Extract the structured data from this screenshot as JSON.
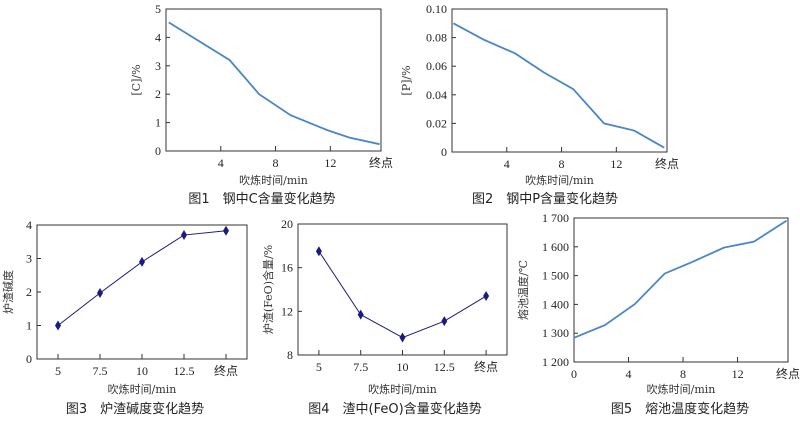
{
  "chart_data": [
    {
      "type": "line",
      "caption": "图1　钢中C含量变化趋势",
      "xlabel": "吹炼时间/min",
      "ylabel": "[C]/%",
      "xlim": [
        0,
        15.7
      ],
      "ylim": [
        0,
        5
      ],
      "xticks": [
        {
          "v": 4,
          "label": "4"
        },
        {
          "v": 8,
          "label": "8"
        },
        {
          "v": 12,
          "label": "12"
        },
        {
          "v": 15.7,
          "label": "终点"
        }
      ],
      "yticks": [
        {
          "v": 0,
          "label": "0"
        },
        {
          "v": 1,
          "label": "1"
        },
        {
          "v": 2,
          "label": "2"
        },
        {
          "v": 3,
          "label": "3"
        },
        {
          "v": 4,
          "label": "4"
        },
        {
          "v": 5,
          "label": "5"
        }
      ],
      "x": [
        0.2,
        4.65,
        6.8,
        9.1,
        11.8,
        13.4,
        15.6
      ],
      "y": [
        4.53,
        3.2,
        2.0,
        1.26,
        0.73,
        0.47,
        0.24
      ],
      "color": "#4a86c8",
      "markers": false,
      "grid": false
    },
    {
      "type": "line",
      "caption": "图2　钢中P含量变化趋势",
      "xlabel": "吹炼时间/min",
      "ylabel": "[P]/%",
      "xlim": [
        0,
        15.7
      ],
      "ylim": [
        0,
        0.1
      ],
      "xticks": [
        {
          "v": 4,
          "label": "4"
        },
        {
          "v": 8,
          "label": "8"
        },
        {
          "v": 12,
          "label": "12"
        },
        {
          "v": 15.7,
          "label": "终点"
        }
      ],
      "yticks": [
        {
          "v": 0,
          "label": "0"
        },
        {
          "v": 0.02,
          "label": "0.02"
        },
        {
          "v": 0.04,
          "label": "0.04"
        },
        {
          "v": 0.06,
          "label": "0.06"
        },
        {
          "v": 0.08,
          "label": "0.08"
        },
        {
          "v": 0.1,
          "label": "0.10"
        }
      ],
      "x": [
        0.1,
        2.3,
        4.6,
        6.7,
        8.85,
        11.1,
        13.3,
        15.5
      ],
      "y": [
        0.09,
        0.0786,
        0.069,
        0.0557,
        0.044,
        0.02,
        0.015,
        0.003
      ],
      "color": "#4a86c8",
      "markers": false,
      "grid": false
    },
    {
      "type": "line",
      "caption": "图3　炉渣碱度变化趋势",
      "xlabel": "吹炼时间/min",
      "ylabel": "炉渣碱度",
      "categories": [
        "5",
        "7.5",
        "10",
        "12.5",
        "终点"
      ],
      "ylim": [
        0,
        4
      ],
      "yticks": [
        {
          "v": 0,
          "label": "0"
        },
        {
          "v": 1,
          "label": "1"
        },
        {
          "v": 2,
          "label": "2"
        },
        {
          "v": 3,
          "label": "3"
        },
        {
          "v": 4,
          "label": "4"
        }
      ],
      "y": [
        1.0,
        1.97,
        2.9,
        3.7,
        3.83
      ],
      "color": "#1a1a80",
      "markers": true,
      "grid": false
    },
    {
      "type": "line",
      "caption": "图4　渣中(FeO)含量变化趋势",
      "xlabel": "吹炼时间/min",
      "ylabel": "炉渣(FeO)含量/%",
      "categories": [
        "5",
        "7.5",
        "10",
        "12.5",
        "终点"
      ],
      "ylim": [
        8,
        20
      ],
      "yticks": [
        {
          "v": 8,
          "label": "8"
        },
        {
          "v": 12,
          "label": "12"
        },
        {
          "v": 16,
          "label": "16"
        },
        {
          "v": 20,
          "label": "20"
        }
      ],
      "y": [
        17.5,
        11.7,
        9.6,
        11.1,
        13.4
      ],
      "color": "#1a1a80",
      "markers": true,
      "grid": false
    },
    {
      "type": "line",
      "caption": "图5　熔池温度变化趋势",
      "xlabel": "吹炼时间/min",
      "ylabel": "熔池温度/℃",
      "xlim": [
        0,
        15.7
      ],
      "ylim": [
        1200,
        1700
      ],
      "xticks": [
        {
          "v": 0,
          "label": "0"
        },
        {
          "v": 4,
          "label": "4"
        },
        {
          "v": 8,
          "label": "8"
        },
        {
          "v": 12,
          "label": "12"
        },
        {
          "v": 15.7,
          "label": "终点"
        }
      ],
      "yticks": [
        {
          "v": 1200,
          "label": "1 200"
        },
        {
          "v": 1300,
          "label": "1 300"
        },
        {
          "v": 1400,
          "label": "1 400"
        },
        {
          "v": 1500,
          "label": "1 500"
        },
        {
          "v": 1600,
          "label": "1 600"
        },
        {
          "v": 1700,
          "label": "1 700"
        }
      ],
      "x": [
        0,
        2.27,
        4.46,
        6.65,
        8.7,
        11.0,
        13.2,
        15.6
      ],
      "y": [
        1284,
        1328,
        1401,
        1507,
        1548,
        1597,
        1618,
        1691
      ],
      "color": "#4a86c8",
      "markers": false,
      "grid": false
    }
  ]
}
